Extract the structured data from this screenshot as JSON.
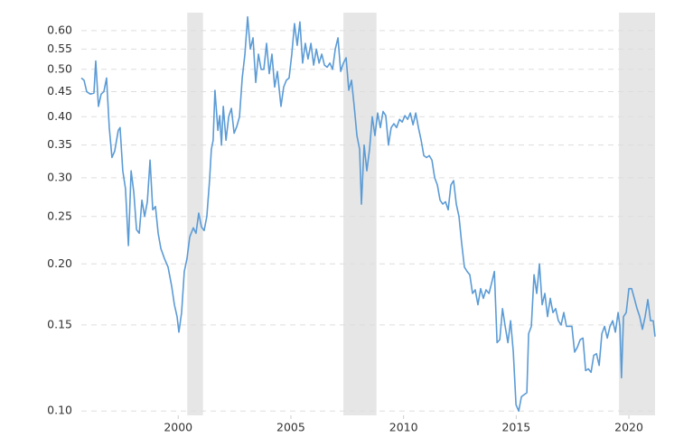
{
  "chart_data": {
    "type": "line",
    "log_scale": true,
    "grid": true,
    "color": "#5b9bd5",
    "shade_color": "#e6e6e6",
    "xlim": [
      1995.7,
      2021.16
    ],
    "ylim": [
      0.098,
      0.653
    ],
    "xticks": [
      2000,
      2005,
      2010,
      2015,
      2020
    ],
    "yticks": [
      {
        "value": 0.1,
        "label": "0.10"
      },
      0.15,
      {
        "value": 0.2,
        "label": "0.20"
      },
      0.25,
      {
        "value": 0.3,
        "label": "0.30"
      },
      0.35,
      {
        "value": 0.4,
        "label": "0.40"
      },
      0.45,
      {
        "value": 0.5,
        "label": "0.50"
      },
      0.55,
      {
        "value": 0.6,
        "label": "0.60"
      }
    ],
    "shaded_ranges": [
      [
        2000.4,
        2001.1
      ],
      [
        2007.33,
        2008.8
      ],
      [
        2019.56,
        2021.16
      ]
    ],
    "x": [
      1995.7,
      1995.82,
      1995.94,
      1996.1,
      1996.26,
      1996.34,
      1996.46,
      1996.58,
      1996.7,
      1996.82,
      1996.94,
      1997.06,
      1997.18,
      1997.34,
      1997.42,
      1997.54,
      1997.66,
      1997.79,
      1997.91,
      1998.03,
      1998.15,
      1998.27,
      1998.39,
      1998.51,
      1998.63,
      1998.75,
      1998.87,
      1998.99,
      1999.11,
      1999.23,
      1999.39,
      1999.55,
      1999.71,
      1999.83,
      1999.95,
      2000.03,
      2000.15,
      2000.27,
      2000.39,
      2000.51,
      2000.67,
      2000.79,
      2000.91,
      2001.03,
      2001.15,
      2001.27,
      2001.39,
      2001.47,
      2001.55,
      2001.63,
      2001.76,
      2001.84,
      2001.92,
      2002.0,
      2002.12,
      2002.24,
      2002.36,
      2002.48,
      2002.6,
      2002.72,
      2002.84,
      2002.96,
      2003.08,
      2003.2,
      2003.32,
      2003.44,
      2003.56,
      2003.68,
      2003.8,
      2003.92,
      2004.04,
      2004.16,
      2004.28,
      2004.4,
      2004.56,
      2004.68,
      2004.8,
      2004.92,
      2005.04,
      2005.16,
      2005.28,
      2005.4,
      2005.52,
      2005.64,
      2005.76,
      2005.89,
      2006.01,
      2006.13,
      2006.25,
      2006.37,
      2006.49,
      2006.61,
      2006.73,
      2006.85,
      2006.97,
      2007.09,
      2007.21,
      2007.33,
      2007.45,
      2007.57,
      2007.69,
      2007.81,
      2007.93,
      2008.05,
      2008.13,
      2008.25,
      2008.37,
      2008.49,
      2008.61,
      2008.73,
      2008.85,
      2008.97,
      2009.09,
      2009.21,
      2009.33,
      2009.45,
      2009.57,
      2009.69,
      2009.82,
      2009.94,
      2010.06,
      2010.18,
      2010.3,
      2010.42,
      2010.54,
      2010.66,
      2010.78,
      2010.9,
      2011.02,
      2011.14,
      2011.26,
      2011.38,
      2011.5,
      2011.62,
      2011.74,
      2011.86,
      2011.98,
      2012.1,
      2012.22,
      2012.34,
      2012.46,
      2012.58,
      2012.7,
      2012.82,
      2012.94,
      2013.06,
      2013.18,
      2013.3,
      2013.42,
      2013.54,
      2013.66,
      2013.79,
      2013.91,
      2014.03,
      2014.15,
      2014.27,
      2014.39,
      2014.51,
      2014.63,
      2014.75,
      2014.87,
      2014.99,
      2015.11,
      2015.23,
      2015.35,
      2015.47,
      2015.55,
      2015.67,
      2015.79,
      2015.91,
      2016.03,
      2016.15,
      2016.27,
      2016.39,
      2016.51,
      2016.63,
      2016.75,
      2016.87,
      2016.99,
      2017.11,
      2017.23,
      2017.35,
      2017.47,
      2017.59,
      2017.71,
      2017.84,
      2017.96,
      2018.08,
      2018.2,
      2018.32,
      2018.44,
      2018.56,
      2018.68,
      2018.8,
      2018.92,
      2019.04,
      2019.16,
      2019.28,
      2019.4,
      2019.52,
      2019.6,
      2019.67,
      2019.76,
      2019.88,
      2020.0,
      2020.12,
      2020.24,
      2020.36,
      2020.48,
      2020.6,
      2020.72,
      2020.84,
      2020.96,
      2021.08,
      2021.16
    ],
    "values": [
      0.48,
      0.475,
      0.45,
      0.445,
      0.447,
      0.52,
      0.42,
      0.445,
      0.45,
      0.48,
      0.38,
      0.33,
      0.34,
      0.375,
      0.38,
      0.31,
      0.285,
      0.218,
      0.31,
      0.28,
      0.235,
      0.231,
      0.27,
      0.25,
      0.268,
      0.326,
      0.258,
      0.262,
      0.231,
      0.215,
      0.205,
      0.197,
      0.18,
      0.165,
      0.156,
      0.145,
      0.159,
      0.193,
      0.205,
      0.227,
      0.237,
      0.231,
      0.254,
      0.238,
      0.234,
      0.25,
      0.296,
      0.343,
      0.358,
      0.453,
      0.375,
      0.402,
      0.35,
      0.42,
      0.358,
      0.4,
      0.416,
      0.37,
      0.382,
      0.4,
      0.48,
      0.537,
      0.64,
      0.55,
      0.58,
      0.47,
      0.537,
      0.5,
      0.5,
      0.565,
      0.49,
      0.537,
      0.46,
      0.495,
      0.42,
      0.46,
      0.475,
      0.48,
      0.537,
      0.62,
      0.56,
      0.625,
      0.515,
      0.565,
      0.525,
      0.565,
      0.51,
      0.55,
      0.515,
      0.537,
      0.51,
      0.505,
      0.515,
      0.5,
      0.55,
      0.58,
      0.495,
      0.515,
      0.528,
      0.453,
      0.475,
      0.42,
      0.366,
      0.343,
      0.265,
      0.35,
      0.31,
      0.343,
      0.4,
      0.366,
      0.407,
      0.38,
      0.41,
      0.402,
      0.35,
      0.38,
      0.387,
      0.38,
      0.395,
      0.39,
      0.402,
      0.395,
      0.407,
      0.385,
      0.407,
      0.38,
      0.358,
      0.333,
      0.33,
      0.333,
      0.326,
      0.3,
      0.29,
      0.27,
      0.265,
      0.268,
      0.258,
      0.29,
      0.296,
      0.265,
      0.25,
      0.22,
      0.197,
      0.193,
      0.19,
      0.174,
      0.177,
      0.165,
      0.178,
      0.17,
      0.177,
      0.174,
      0.183,
      0.193,
      0.138,
      0.14,
      0.162,
      0.149,
      0.138,
      0.153,
      0.132,
      0.103,
      0.1,
      0.107,
      0.108,
      0.109,
      0.144,
      0.149,
      0.19,
      0.174,
      0.2,
      0.165,
      0.174,
      0.156,
      0.17,
      0.159,
      0.162,
      0.153,
      0.15,
      0.159,
      0.149,
      0.149,
      0.149,
      0.132,
      0.135,
      0.14,
      0.141,
      0.121,
      0.122,
      0.12,
      0.13,
      0.131,
      0.124,
      0.144,
      0.149,
      0.141,
      0.149,
      0.153,
      0.145,
      0.159,
      0.149,
      0.117,
      0.156,
      0.159,
      0.178,
      0.178,
      0.17,
      0.162,
      0.156,
      0.147,
      0.156,
      0.169,
      0.153,
      0.153,
      0.142
    ]
  }
}
